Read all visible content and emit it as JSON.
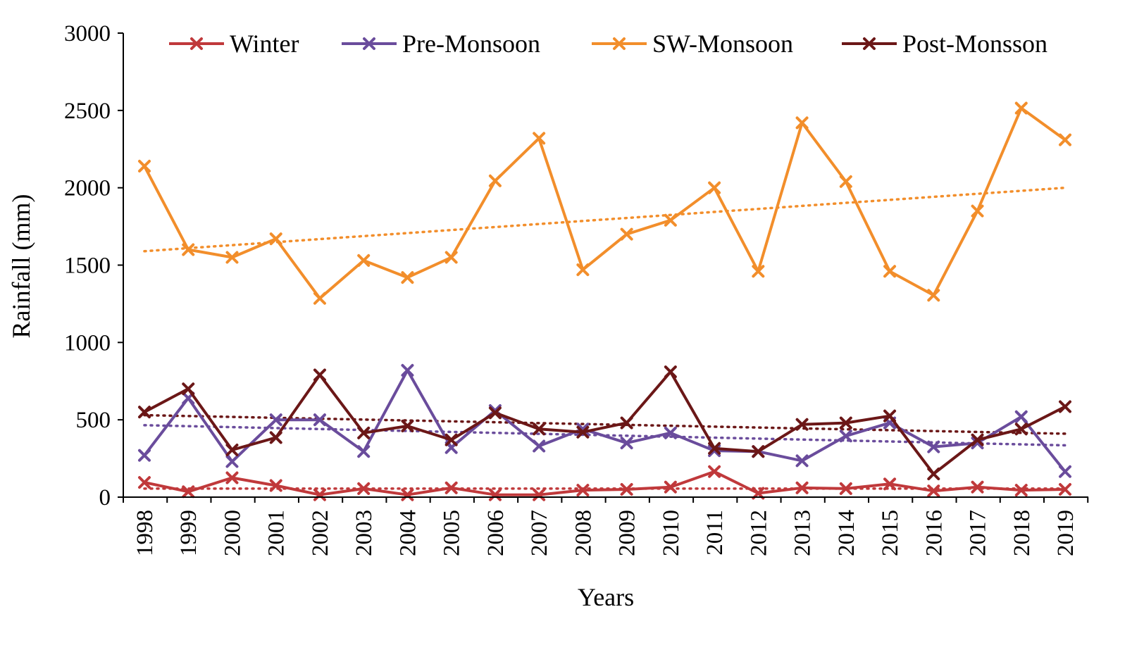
{
  "chart_data": {
    "type": "line",
    "title": "",
    "xlabel": "Years",
    "ylabel": "Rainfall (mm)",
    "ylim": [
      0,
      3000
    ],
    "yticks": [
      0,
      500,
      1000,
      1500,
      2000,
      2500,
      3000
    ],
    "x": [
      "1998",
      "1999",
      "2000",
      "2001",
      "2002",
      "2003",
      "2004",
      "2005",
      "2006",
      "2007",
      "2008",
      "2009",
      "2010",
      "2011",
      "2012",
      "2013",
      "2014",
      "2015",
      "2016",
      "2017",
      "2018",
      "2019"
    ],
    "grid": false,
    "legend_position": "top",
    "marker": "x",
    "series": [
      {
        "name": "Winter",
        "color": "#c0393b",
        "values": [
          95,
          35,
          125,
          75,
          15,
          55,
          15,
          60,
          15,
          15,
          45,
          50,
          65,
          165,
          25,
          60,
          55,
          85,
          40,
          65,
          45,
          50
        ],
        "trend": [
          55,
          55
        ]
      },
      {
        "name": "Pre-Monsoon",
        "color": "#6a4c9c",
        "values": [
          270,
          640,
          230,
          500,
          500,
          295,
          820,
          320,
          560,
          330,
          440,
          350,
          415,
          300,
          295,
          235,
          395,
          480,
          325,
          350,
          520,
          165
        ],
        "trend": [
          465,
          335
        ]
      },
      {
        "name": "SW-Monsoon",
        "color": "#f28e2b",
        "values": [
          2140,
          1600,
          1550,
          1670,
          1285,
          1530,
          1420,
          1550,
          2045,
          2320,
          1470,
          1700,
          1790,
          2000,
          1460,
          2420,
          2040,
          1460,
          1305,
          1850,
          2515,
          2310
        ],
        "trend": [
          1590,
          2000
        ]
      },
      {
        "name": "Post-Monsson",
        "color": "#6b1717",
        "values": [
          550,
          700,
          305,
          385,
          790,
          415,
          460,
          370,
          545,
          440,
          420,
          480,
          810,
          315,
          295,
          470,
          480,
          525,
          150,
          370,
          440,
          585
        ],
        "trend": [
          530,
          410
        ]
      }
    ]
  }
}
